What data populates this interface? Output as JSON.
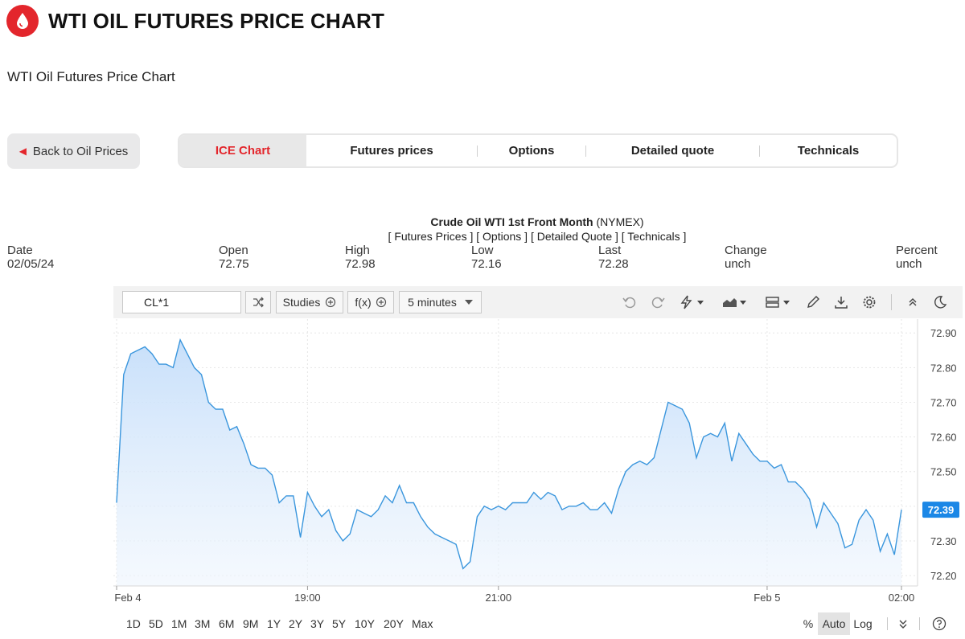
{
  "header": {
    "title": "WTI OIL FUTURES PRICE CHART",
    "subtitle": "WTI Oil Futures Price Chart"
  },
  "back_button": {
    "label": "Back to Oil Prices",
    "icon": "chevron-left-icon"
  },
  "tabs": [
    {
      "label": "ICE Chart",
      "active": true
    },
    {
      "label": "Futures prices",
      "active": false
    },
    {
      "label": "Options",
      "active": false
    },
    {
      "label": "Detailed quote",
      "active": false
    },
    {
      "label": "Technicals",
      "active": false
    }
  ],
  "quote": {
    "name": "Crude Oil WTI 1st Front Month",
    "exchange": "(NYMEX)",
    "links": "[ Futures Prices ] [ Options ] [ Detailed Quote ] [ Technicals ]",
    "stats": [
      {
        "label": "Date",
        "value": "02/05/24"
      },
      {
        "label": "Open",
        "value": "72.75"
      },
      {
        "label": "High",
        "value": "72.98"
      },
      {
        "label": "Low",
        "value": "72.16"
      },
      {
        "label": "Last",
        "value": "72.28"
      },
      {
        "label": "Change",
        "value": "unch"
      },
      {
        "label": "Percent",
        "value": "unch"
      }
    ]
  },
  "toolbar": {
    "symbol": "CL*1",
    "studies_label": "Studies",
    "fx_label": "f(x)",
    "interval_label": "5 minutes"
  },
  "ranges": [
    "1D",
    "5D",
    "1M",
    "3M",
    "6M",
    "9M",
    "1Y",
    "2Y",
    "3Y",
    "5Y",
    "10Y",
    "20Y",
    "Max"
  ],
  "scale": {
    "percent": "%",
    "auto": "Auto",
    "log": "Log",
    "active": "Auto"
  },
  "colors": {
    "accent": "#e3262c",
    "line": "#3a96dd",
    "fill": "#d2e7fb",
    "last_badge": "#1b87e6"
  },
  "chart_data": {
    "type": "area",
    "symbol": "CL*1",
    "interval": "5 minutes",
    "x_tick_labels": [
      "Feb 4",
      "19:00",
      "21:00",
      "Feb 5",
      "02:00"
    ],
    "y_ticks": [
      72.9,
      72.8,
      72.7,
      72.6,
      72.5,
      72.4,
      72.3,
      72.2
    ],
    "y_tick_labels": [
      "72.90",
      "72.80",
      "72.70",
      "72.60",
      "72.50",
      "72.40",
      "72.30",
      "72.20"
    ],
    "ylim": [
      72.17,
      72.94
    ],
    "last_value": "72.39",
    "grid": true,
    "series": [
      {
        "values": [
          72.41,
          72.78,
          72.84,
          72.85,
          72.86,
          72.84,
          72.81,
          72.81,
          72.8,
          72.88,
          72.84,
          72.8,
          72.78,
          72.7,
          72.68,
          72.68,
          72.62,
          72.63,
          72.58,
          72.52,
          72.51,
          72.51,
          72.49,
          72.41,
          72.43,
          72.43,
          72.31,
          72.44,
          72.4,
          72.37,
          72.39,
          72.33,
          72.3,
          72.32,
          72.39,
          72.38,
          72.37,
          72.39,
          72.43,
          72.41,
          72.46,
          72.41,
          72.41,
          72.37,
          72.34,
          72.32,
          72.31,
          72.3,
          72.29,
          72.22,
          72.24,
          72.37,
          72.4,
          72.39,
          72.4,
          72.39,
          72.41,
          72.41,
          72.41,
          72.44,
          72.42,
          72.44,
          72.43,
          72.39,
          72.4,
          72.4,
          72.41,
          72.39,
          72.39,
          72.41,
          72.38,
          72.45,
          72.5,
          72.52,
          72.53,
          72.52,
          72.54,
          72.62,
          72.7,
          72.69,
          72.68,
          72.64,
          72.54,
          72.6,
          72.61,
          72.6,
          72.64,
          72.53,
          72.61,
          72.58,
          72.55,
          72.53,
          72.53,
          72.51,
          72.52,
          72.47,
          72.47,
          72.45,
          72.42,
          72.34,
          72.41,
          72.38,
          72.35,
          72.28,
          72.29,
          72.36,
          72.39,
          72.36,
          72.27,
          72.32,
          72.26,
          72.39
        ]
      }
    ]
  }
}
